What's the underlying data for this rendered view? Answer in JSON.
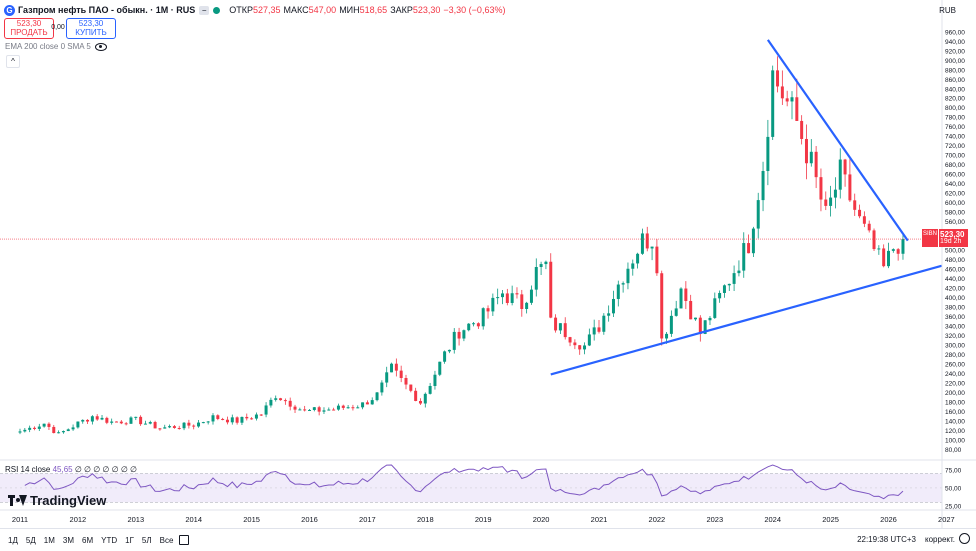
{
  "header": {
    "symbol_title": "Газпром нефть ПАО - обыкн. · 1М · RUS",
    "logo_letter": "G",
    "ohlc": [
      {
        "key": "ОТКР",
        "value": "527,35"
      },
      {
        "key": "МАКС",
        "value": "547,00"
      },
      {
        "key": "МИН",
        "value": "518,65"
      },
      {
        "key": "ЗАКР",
        "value": "523,30"
      },
      {
        "key": "",
        "value": "−3,30 (−0,63%)"
      }
    ],
    "currency": "RUB"
  },
  "trade": {
    "sell_price": "523,30",
    "sell_label": "ПРОДАТЬ",
    "spread": "0,00",
    "buy_price": "523,30",
    "buy_label": "КУПИТЬ"
  },
  "indicator_label": "EMA 200 close 0 SMA 5",
  "price_label": {
    "symbol": "SIBN",
    "value": "523,30",
    "countdown": "19d 2h"
  },
  "rsi": {
    "label": "RSI 14 close",
    "value": "45,65",
    "extras": "∅ ∅ ∅ ∅ ∅ ∅ ∅"
  },
  "brand": "TradingView",
  "bottom_bar": {
    "timeframes": [
      "1Д",
      "5Д",
      "1М",
      "3М",
      "6М",
      "YTD",
      "1Г",
      "5Л",
      "Все"
    ],
    "clock": "22:19:38 UTC+3",
    "adjust": "коррект."
  },
  "colors": {
    "up": "#089981",
    "down": "#f23645",
    "trendline": "#2962ff",
    "rsi": "#7e57c2",
    "rsi_band": "#f1ecfa"
  },
  "chart_data": [
    {
      "type": "candlestick",
      "title": "Газпром нефть ПАО - обыкн. · 1М · RUS",
      "timeframe": "monthly",
      "x_ticks": [
        "2011",
        "2012",
        "2013",
        "2014",
        "2015",
        "2016",
        "2017",
        "2018",
        "2019",
        "2020",
        "2021",
        "2022",
        "2023",
        "2024",
        "2025",
        "2026",
        "2027"
      ],
      "y_ticks": [
        "80,00",
        "100,00",
        "120,00",
        "140,00",
        "160,00",
        "180,00",
        "200,00",
        "220,00",
        "240,00",
        "260,00",
        "280,00",
        "300,00",
        "320,00",
        "340,00",
        "360,00",
        "380,00",
        "400,00",
        "420,00",
        "440,00",
        "460,00",
        "480,00",
        "500,00",
        "520,00",
        "540,00",
        "560,00",
        "580,00",
        "600,00",
        "620,00",
        "640,00",
        "660,00",
        "680,00",
        "700,00",
        "720,00",
        "740,00",
        "760,00",
        "780,00",
        "800,00",
        "820,00",
        "840,00",
        "860,00",
        "880,00",
        "900,00",
        "920,00",
        "940,00",
        "960,00"
      ],
      "ylim": [
        62,
        968
      ],
      "last_close": 523.3,
      "anchors": [
        [
          "2011-01",
          118
        ],
        [
          "2011-06",
          135
        ],
        [
          "2011-09",
          112
        ],
        [
          "2012-01",
          135
        ],
        [
          "2012-04",
          150
        ],
        [
          "2012-08",
          138
        ],
        [
          "2013-01",
          142
        ],
        [
          "2013-06",
          125
        ],
        [
          "2014-01",
          132
        ],
        [
          "2014-05",
          148
        ],
        [
          "2014-10",
          140
        ],
        [
          "2015-03",
          155
        ],
        [
          "2015-06",
          195
        ],
        [
          "2015-12",
          160
        ],
        [
          "2016-06",
          165
        ],
        [
          "2016-12",
          175
        ],
        [
          "2017-03",
          195
        ],
        [
          "2017-06",
          250
        ],
        [
          "2017-08",
          225
        ],
        [
          "2017-12",
          180
        ],
        [
          "2018-05",
          280
        ],
        [
          "2018-08",
          330
        ],
        [
          "2019-01",
          360
        ],
        [
          "2019-05",
          410
        ],
        [
          "2019-09",
          385
        ],
        [
          "2019-12",
          455
        ],
        [
          "2020-02",
          468
        ],
        [
          "2020-03",
          345
        ],
        [
          "2020-05",
          335
        ],
        [
          "2020-10",
          298
        ],
        [
          "2021-01",
          340
        ],
        [
          "2021-06",
          450
        ],
        [
          "2021-10",
          520
        ],
        [
          "2021-12",
          525
        ],
        [
          "2022-01",
          475
        ],
        [
          "2022-02",
          310
        ],
        [
          "2022-06",
          420
        ],
        [
          "2022-10",
          325
        ],
        [
          "2023-03",
          420
        ],
        [
          "2023-08",
          515
        ],
        [
          "2023-11",
          680
        ],
        [
          "2024-01",
          870
        ],
        [
          "2024-06",
          770
        ],
        [
          "2024-09",
          680
        ],
        [
          "2024-12",
          570
        ],
        [
          "2025-03",
          660
        ],
        [
          "2025-07",
          560
        ],
        [
          "2025-10",
          500
        ],
        [
          "2025-12",
          460
        ],
        [
          "2026-02",
          505
        ],
        [
          "2026-04",
          523.3
        ]
      ],
      "trendlines": [
        {
          "name": "upper",
          "from": [
            "2023-12",
            943
          ],
          "to": [
            "2026-05",
            520
          ]
        },
        {
          "name": "lower",
          "from": [
            "2020-03",
            238
          ],
          "to": [
            "2026-12",
            467
          ]
        }
      ]
    },
    {
      "type": "line",
      "title": "RSI 14 close",
      "y_ticks": [
        "25,00",
        "50,00",
        "75,00"
      ],
      "ylim": [
        22,
        82
      ],
      "bands": [
        30,
        70
      ],
      "last_value": 45.65
    }
  ]
}
